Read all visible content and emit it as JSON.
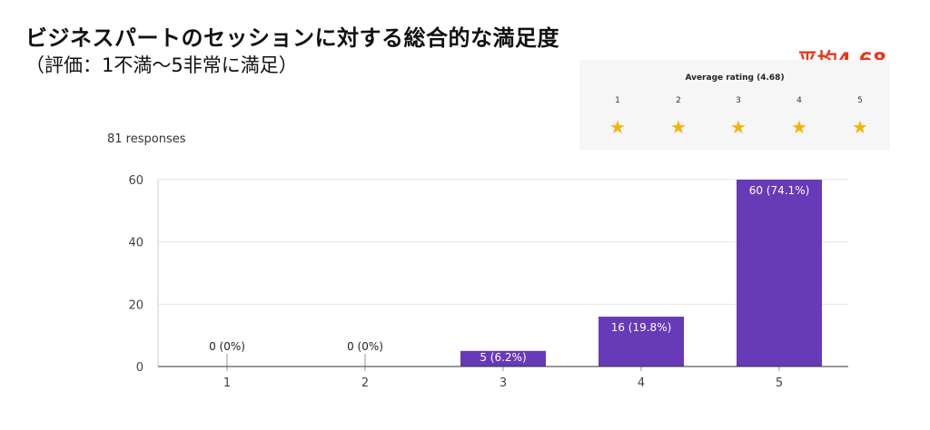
{
  "header": {
    "title": "ビジネスパートのセッションに対する総合的な満足度",
    "subtitle": "（評価：1不満～5非常に満足）",
    "avg_callout": "平均4.68"
  },
  "rating_widget": {
    "title": "Average rating (4.68)",
    "levels": [
      "1",
      "2",
      "3",
      "4",
      "5"
    ],
    "average": 4.68,
    "star_icon": "star-icon",
    "star_color": "#f6b400",
    "empty_star_color": "#c4c4c4"
  },
  "responses_label": "81 responses",
  "chart_data": {
    "type": "bar",
    "categories": [
      "1",
      "2",
      "3",
      "4",
      "5"
    ],
    "values": [
      0,
      0,
      5,
      16,
      60
    ],
    "data_labels": [
      "0 (0%)",
      "0 (0%)",
      "5 (6.2%)",
      "16 (19.8%)",
      "60 (74.1%)"
    ],
    "y_ticks": [
      "0",
      "20",
      "40",
      "60"
    ],
    "ylim": [
      0,
      60
    ],
    "grid": true,
    "bar_color": "#673ab7",
    "title": "",
    "xlabel": "",
    "ylabel": ""
  }
}
